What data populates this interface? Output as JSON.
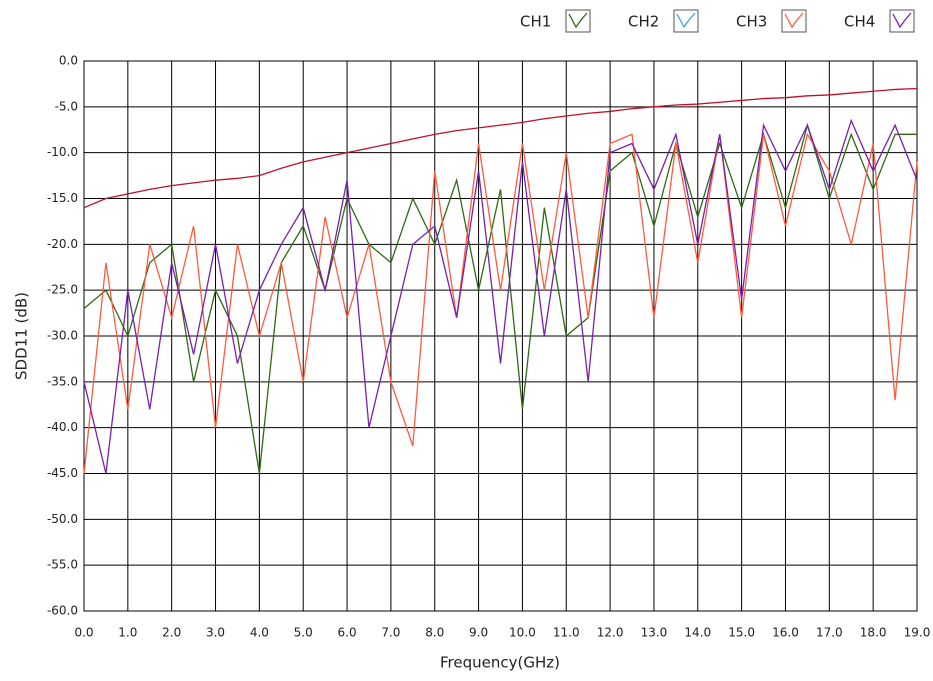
{
  "chart_data": {
    "type": "line",
    "xlabel": "Frequency(GHz)",
    "ylabel": "SDD11 (dB)",
    "xlim": [
      0,
      19
    ],
    "ylim": [
      -60,
      0
    ],
    "grid": true,
    "legend": "top-right",
    "xticks": [
      {
        "value": 0,
        "label": "0.0"
      },
      {
        "value": 1,
        "label": "1.0"
      },
      {
        "value": 2,
        "label": "2.0"
      },
      {
        "value": 3,
        "label": "3.0"
      },
      {
        "value": 4,
        "label": "4.0"
      },
      {
        "value": 5,
        "label": "5.0"
      },
      {
        "value": 6,
        "label": "6.0"
      },
      {
        "value": 7,
        "label": "7.0"
      },
      {
        "value": 8,
        "label": "8.0"
      },
      {
        "value": 9,
        "label": "9.0"
      },
      {
        "value": 10,
        "label": "10.0"
      },
      {
        "value": 11,
        "label": "11.0"
      },
      {
        "value": 12,
        "label": "12.0"
      },
      {
        "value": 13,
        "label": "13.0"
      },
      {
        "value": 14,
        "label": "14.0"
      },
      {
        "value": 15,
        "label": "15.0"
      },
      {
        "value": 16,
        "label": "16.0"
      },
      {
        "value": 17,
        "label": "17.0"
      },
      {
        "value": 18,
        "label": "18.0"
      },
      {
        "value": 19,
        "label": "19.0"
      }
    ],
    "yticks": [
      {
        "value": 0,
        "label": "0.0"
      },
      {
        "value": -5,
        "label": "-5.0"
      },
      {
        "value": -10,
        "label": "-10.0"
      },
      {
        "value": -15,
        "label": "-15.0"
      },
      {
        "value": -20,
        "label": "-20.0"
      },
      {
        "value": -25,
        "label": "-25.0"
      },
      {
        "value": -30,
        "label": "-30.0"
      },
      {
        "value": -35,
        "label": "-35.0"
      },
      {
        "value": -40,
        "label": "-40.0"
      },
      {
        "value": -45,
        "label": "-45.0"
      },
      {
        "value": -50,
        "label": "-50.0"
      },
      {
        "value": -55,
        "label": "-55.0"
      },
      {
        "value": -60,
        "label": "-60.0"
      }
    ],
    "x": [
      0,
      0.5,
      1,
      1.5,
      2,
      2.5,
      3,
      3.5,
      4,
      4.5,
      5,
      5.5,
      6,
      6.5,
      7,
      7.5,
      8,
      8.5,
      9,
      9.5,
      10,
      10.5,
      11,
      11.5,
      12,
      12.5,
      13,
      13.5,
      14,
      14.5,
      15,
      15.5,
      16,
      16.5,
      17,
      17.5,
      18,
      18.5,
      19
    ],
    "series": [
      {
        "name": "CH1",
        "color": "#2e6b12",
        "values": [
          -27,
          -25,
          -30,
          -22,
          -20,
          -35,
          -25,
          -30,
          -45,
          -22,
          -18,
          -25,
          -15,
          -20,
          -22,
          -15,
          -20,
          -13,
          -25,
          -14,
          -38,
          -16,
          -30,
          -28,
          -12,
          -10,
          -18,
          -9,
          -17,
          -9,
          -16,
          -8,
          -16,
          -7,
          -15,
          -8,
          -14,
          -8,
          -8
        ]
      },
      {
        "name": "CH2",
        "color": "#3da0e0",
        "values": [
          null,
          null,
          null,
          null,
          null,
          null,
          null,
          null,
          null,
          null,
          null,
          null,
          null,
          null,
          null,
          null,
          null,
          null,
          null,
          null,
          null,
          null,
          null,
          null,
          null,
          null,
          null,
          null,
          null,
          null,
          null,
          null,
          null,
          null,
          null,
          null,
          null,
          null,
          null
        ]
      },
      {
        "name": "CH3",
        "color": "#ff5a3c",
        "values": [
          -45,
          -22,
          -38,
          -20,
          -28,
          -18,
          -40,
          -20,
          -30,
          -22,
          -35,
          -17,
          -28,
          -20,
          -35,
          -42,
          -12,
          -28,
          -9,
          -25,
          -9,
          -25,
          -10,
          -28,
          -9,
          -8,
          -28,
          -9,
          -22,
          -8,
          -28,
          -8,
          -18,
          -8,
          -12,
          -20,
          -9,
          -37,
          -11
        ]
      },
      {
        "name": "CH4",
        "color": "#7a1fb0",
        "values": [
          -35,
          -45,
          -25,
          -38,
          -22,
          -32,
          -20,
          -33,
          -25,
          -20,
          -16,
          -25,
          -13,
          -40,
          -30,
          -20,
          -18,
          -28,
          -12,
          -33,
          -11,
          -30,
          -14,
          -35,
          -10,
          -9,
          -14,
          -8,
          -20,
          -8,
          -26,
          -7,
          -12,
          -7,
          -14,
          -6.5,
          -12,
          -7,
          -13
        ]
      },
      {
        "color": "#c0102a",
        "values": [
          -16,
          -15,
          -14.5,
          -14,
          -13.6,
          -13.3,
          -13,
          -12.8,
          -12.5,
          -11.7,
          -11,
          -10.5,
          -10,
          -9.5,
          -9,
          -8.5,
          -8,
          -7.6,
          -7.3,
          -7,
          -6.7,
          -6.3,
          -6,
          -5.7,
          -5.5,
          -5.2,
          -5,
          -4.8,
          -4.7,
          -4.5,
          -4.3,
          -4.1,
          -4,
          -3.8,
          -3.7,
          -3.5,
          -3.3,
          -3.1,
          -3
        ]
      }
    ]
  }
}
